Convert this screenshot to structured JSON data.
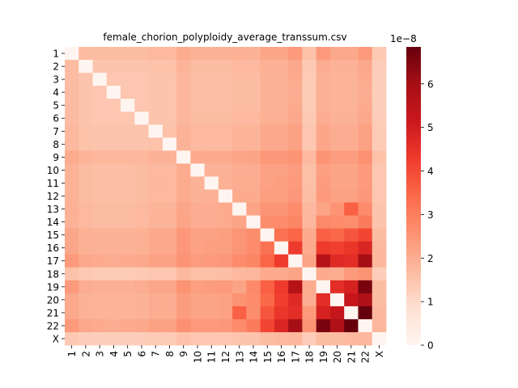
{
  "chart_data": {
    "type": "heatmap",
    "title": "female_chorion_polyploidy_average_transsum.csv",
    "xlabel": "",
    "ylabel": "",
    "labels": [
      "1",
      "2",
      "3",
      "4",
      "5",
      "6",
      "7",
      "8",
      "9",
      "10",
      "11",
      "12",
      "13",
      "14",
      "15",
      "16",
      "17",
      "18",
      "19",
      "20",
      "21",
      "22",
      "X"
    ],
    "colormap": "Reds",
    "vmin": 0,
    "vmax": 6.85,
    "colorbar": {
      "offset_text": "1e−8",
      "ticks": [
        0,
        1,
        2,
        3,
        4,
        5,
        6
      ],
      "tick_labels": [
        "0",
        "1",
        "2",
        "3",
        "4",
        "5",
        "6"
      ]
    },
    "values": [
      [
        0.0,
        1.7,
        1.7,
        1.7,
        1.7,
        1.7,
        1.75,
        1.75,
        2.05,
        1.9,
        1.9,
        1.9,
        1.95,
        1.9,
        2.15,
        2.15,
        2.4,
        1.55,
        2.4,
        2.1,
        2.1,
        2.4,
        1.4
      ],
      [
        1.7,
        0.0,
        1.5,
        1.5,
        1.5,
        1.5,
        1.55,
        1.55,
        1.85,
        1.7,
        1.7,
        1.7,
        1.75,
        1.75,
        1.95,
        1.95,
        2.1,
        1.4,
        2.0,
        1.9,
        1.9,
        2.1,
        1.3
      ],
      [
        1.7,
        1.5,
        0.0,
        1.45,
        1.45,
        1.45,
        1.5,
        1.5,
        1.8,
        1.65,
        1.65,
        1.65,
        1.7,
        1.7,
        1.9,
        1.9,
        2.05,
        1.35,
        1.95,
        1.85,
        1.85,
        2.05,
        1.25
      ],
      [
        1.7,
        1.5,
        1.45,
        0.0,
        1.45,
        1.45,
        1.5,
        1.5,
        1.8,
        1.65,
        1.65,
        1.65,
        1.7,
        1.7,
        1.9,
        1.9,
        2.0,
        1.35,
        1.95,
        1.85,
        1.85,
        2.0,
        1.25
      ],
      [
        1.7,
        1.5,
        1.45,
        1.45,
        0.0,
        1.45,
        1.5,
        1.5,
        1.8,
        1.65,
        1.65,
        1.65,
        1.7,
        1.7,
        1.9,
        1.9,
        2.05,
        1.35,
        1.95,
        1.85,
        1.85,
        2.05,
        1.25
      ],
      [
        1.7,
        1.5,
        1.45,
        1.45,
        1.45,
        0.0,
        1.5,
        1.5,
        1.8,
        1.7,
        1.7,
        1.7,
        1.75,
        1.75,
        1.95,
        1.95,
        2.1,
        1.4,
        2.0,
        1.9,
        1.9,
        2.1,
        1.3
      ],
      [
        1.75,
        1.55,
        1.5,
        1.5,
        1.5,
        1.5,
        0.0,
        1.55,
        1.9,
        1.75,
        1.75,
        1.75,
        1.85,
        1.85,
        2.1,
        2.1,
        2.25,
        1.45,
        2.15,
        2.0,
        2.0,
        2.25,
        1.35
      ],
      [
        1.75,
        1.55,
        1.5,
        1.5,
        1.5,
        1.5,
        1.55,
        0.0,
        1.9,
        1.75,
        1.75,
        1.75,
        1.85,
        1.85,
        2.1,
        2.1,
        2.25,
        1.45,
        2.15,
        2.0,
        2.0,
        2.25,
        1.35
      ],
      [
        2.05,
        1.85,
        1.8,
        1.8,
        1.8,
        1.8,
        1.9,
        1.9,
        0.0,
        2.05,
        2.05,
        2.05,
        2.15,
        2.2,
        2.45,
        2.45,
        2.55,
        1.75,
        2.55,
        2.35,
        2.35,
        2.6,
        1.55
      ],
      [
        1.9,
        1.7,
        1.65,
        1.65,
        1.65,
        1.7,
        1.75,
        1.75,
        2.05,
        0.0,
        1.9,
        1.9,
        2.0,
        2.0,
        2.25,
        2.25,
        2.35,
        1.6,
        2.3,
        2.2,
        2.2,
        2.4,
        1.45
      ],
      [
        1.9,
        1.7,
        1.65,
        1.65,
        1.65,
        1.7,
        1.75,
        1.75,
        2.05,
        1.9,
        0.0,
        1.95,
        2.0,
        2.0,
        2.25,
        2.3,
        2.4,
        1.6,
        2.35,
        2.2,
        2.2,
        2.4,
        1.45
      ],
      [
        1.9,
        1.7,
        1.65,
        1.65,
        1.65,
        1.7,
        1.75,
        1.75,
        2.05,
        1.9,
        1.95,
        0.0,
        2.05,
        2.05,
        2.3,
        2.3,
        2.45,
        1.65,
        2.4,
        2.25,
        2.25,
        2.45,
        1.45
      ],
      [
        1.95,
        1.75,
        1.7,
        1.7,
        1.7,
        1.75,
        1.85,
        1.85,
        2.15,
        2.0,
        2.0,
        2.05,
        0.0,
        2.2,
        2.5,
        2.5,
        2.7,
        1.75,
        2.2,
        2.55,
        3.6,
        2.7,
        1.5
      ],
      [
        1.9,
        1.75,
        1.7,
        1.7,
        1.7,
        1.75,
        1.85,
        1.85,
        2.2,
        2.0,
        2.0,
        2.05,
        2.2,
        0.0,
        2.65,
        2.7,
        2.85,
        1.8,
        2.75,
        2.7,
        2.65,
        3.05,
        1.5
      ],
      [
        2.15,
        1.95,
        1.9,
        1.9,
        1.9,
        1.95,
        2.1,
        2.1,
        2.45,
        2.25,
        2.25,
        2.3,
        2.5,
        2.65,
        0.0,
        3.25,
        3.5,
        2.05,
        3.6,
        3.45,
        3.8,
        4.1,
        1.7
      ],
      [
        2.15,
        1.95,
        1.9,
        1.9,
        1.9,
        1.95,
        2.1,
        2.1,
        2.45,
        2.25,
        2.3,
        2.3,
        2.5,
        2.7,
        3.25,
        0.0,
        4.3,
        2.05,
        4.3,
        4.2,
        4.4,
        4.8,
        1.75
      ],
      [
        2.4,
        2.1,
        2.05,
        2.0,
        2.05,
        2.1,
        2.25,
        2.25,
        2.55,
        2.35,
        2.4,
        2.45,
        2.7,
        2.85,
        3.5,
        4.3,
        0.0,
        2.2,
        5.6,
        4.7,
        4.6,
        6.0,
        1.8
      ],
      [
        1.55,
        1.4,
        1.35,
        1.35,
        1.35,
        1.4,
        1.45,
        1.45,
        1.75,
        1.6,
        1.6,
        1.65,
        1.75,
        1.8,
        2.05,
        2.05,
        2.2,
        0.0,
        2.05,
        2.0,
        2.4,
        2.55,
        1.3
      ],
      [
        2.4,
        2.0,
        1.95,
        1.95,
        1.95,
        2.0,
        2.15,
        2.15,
        2.55,
        2.3,
        2.35,
        2.4,
        2.2,
        2.75,
        3.6,
        4.3,
        5.6,
        2.05,
        0.0,
        4.6,
        4.9,
        6.6,
        1.7
      ],
      [
        2.1,
        1.9,
        1.85,
        1.85,
        1.85,
        1.9,
        2.0,
        2.0,
        2.35,
        2.2,
        2.2,
        2.25,
        2.55,
        2.7,
        3.45,
        4.2,
        4.7,
        2.0,
        4.6,
        0.0,
        5.3,
        5.8,
        1.7
      ],
      [
        2.1,
        1.9,
        1.85,
        1.85,
        1.85,
        1.9,
        2.0,
        2.0,
        2.35,
        2.2,
        2.2,
        2.25,
        3.6,
        2.65,
        3.8,
        4.4,
        4.6,
        2.4,
        4.9,
        5.3,
        0.0,
        6.85,
        1.75
      ],
      [
        2.4,
        2.1,
        2.05,
        2.0,
        2.05,
        2.1,
        2.25,
        2.25,
        2.6,
        2.4,
        2.4,
        2.45,
        2.7,
        3.05,
        4.1,
        4.8,
        6.0,
        2.55,
        6.6,
        5.8,
        6.85,
        0.0,
        1.8
      ],
      [
        1.4,
        1.3,
        1.25,
        1.25,
        1.25,
        1.3,
        1.35,
        1.35,
        1.55,
        1.45,
        1.45,
        1.45,
        1.5,
        1.5,
        1.7,
        1.75,
        1.8,
        1.3,
        1.7,
        1.7,
        1.75,
        1.8,
        0.0
      ]
    ]
  }
}
